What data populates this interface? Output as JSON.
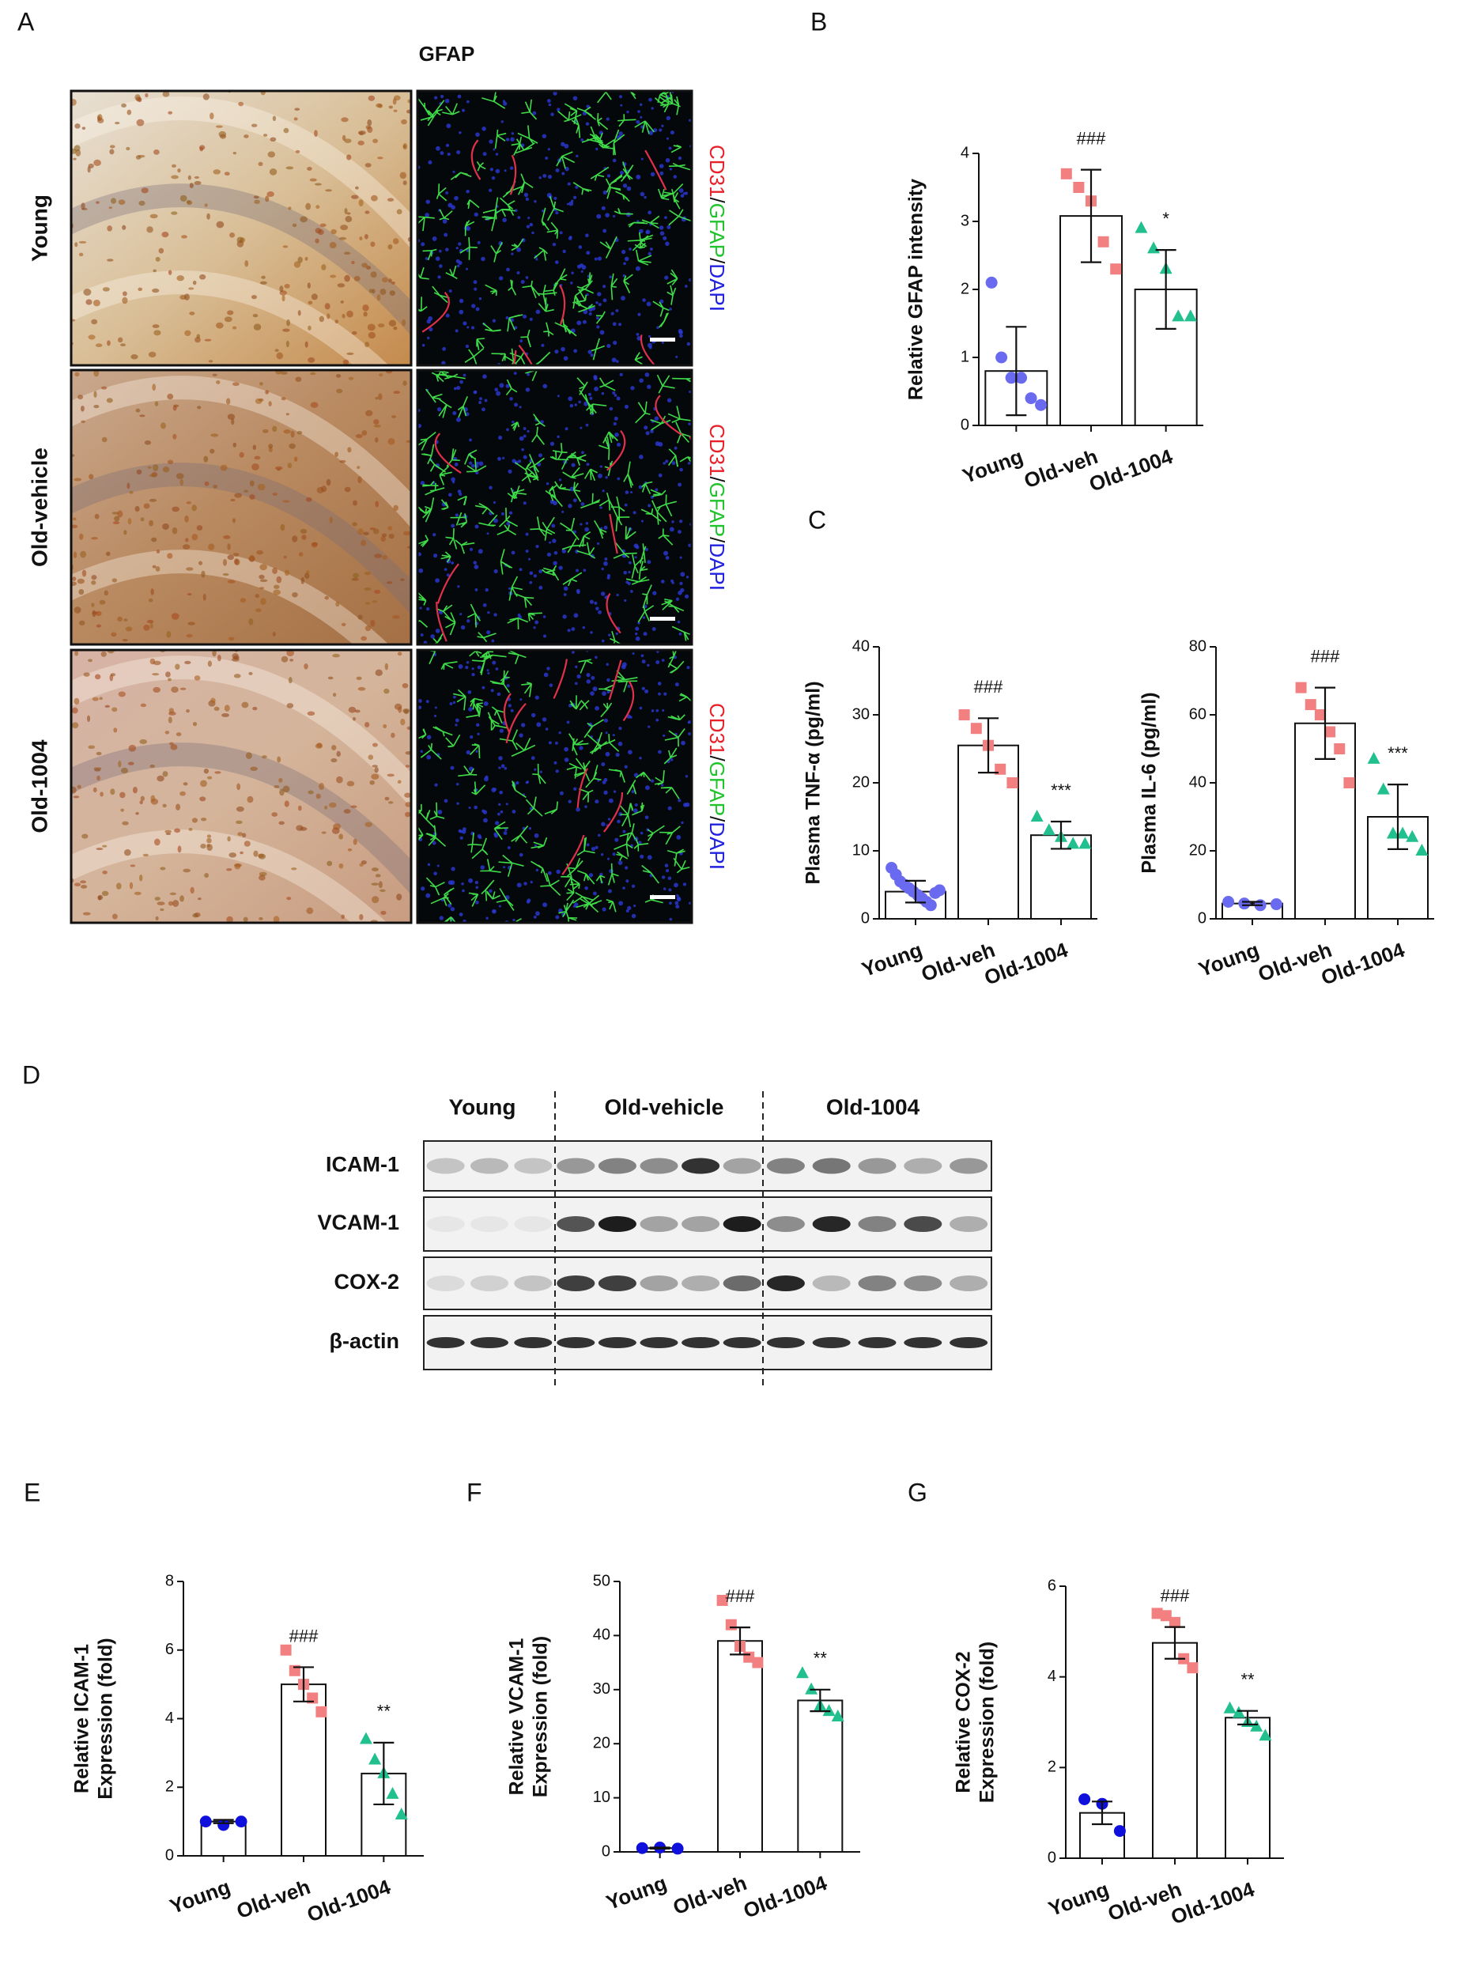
{
  "figure": {
    "panel_a": {
      "letter": "A",
      "title": "GFAP",
      "rows": [
        "Young",
        "Old-vehicle",
        "Old-1004"
      ],
      "stain_label": [
        "CD31",
        "/",
        "GFAP",
        "/",
        "DAPI"
      ]
    },
    "panel_d": {
      "letter": "D",
      "groups": [
        "Young",
        "Old-vehicle",
        "Old-1004"
      ],
      "rows": [
        "ICAM-1",
        "VCAM-1",
        "COX-2",
        "β-actin"
      ]
    }
  },
  "chart_data": [
    {
      "type": "bar",
      "panel": "B",
      "ylabel": [
        "Relative GFAP intensity"
      ],
      "categories": [
        "Young",
        "Old-veh",
        "Old-1004"
      ],
      "values": [
        0.8,
        3.08,
        2.0
      ],
      "errors": [
        0.65,
        0.68,
        0.58
      ],
      "points": [
        [
          2.1,
          1.0,
          0.7,
          0.7,
          0.4,
          0.3
        ],
        [
          3.7,
          3.5,
          3.3,
          2.7,
          2.3
        ],
        [
          2.9,
          2.6,
          2.3,
          1.6,
          1.6
        ]
      ],
      "significance": [
        null,
        "###",
        "*"
      ],
      "colors": [
        "#6a6af0",
        "#f28080",
        "#22c08e"
      ],
      "ylim": [
        0,
        4
      ],
      "yticks": [
        0,
        1,
        2,
        3,
        4
      ]
    },
    {
      "type": "bar",
      "panel": "C",
      "ylabel": [
        "Plasma TNF-α (pg/ml)"
      ],
      "categories": [
        "Young",
        "Old-veh",
        "Old-1004"
      ],
      "values": [
        4,
        25.5,
        12.3
      ],
      "errors": [
        1.6,
        4,
        2
      ],
      "points": [
        [
          7.5,
          6.5,
          5.5,
          5,
          4.5,
          4,
          3.5,
          3,
          2.5,
          2,
          3.8,
          4.2
        ],
        [
          30,
          28,
          25.5,
          22,
          20
        ],
        [
          15,
          13,
          12,
          11,
          11
        ]
      ],
      "significance": [
        null,
        "###",
        "***"
      ],
      "colors": [
        "#6a6af0",
        "#f28080",
        "#22c08e"
      ],
      "ylim": [
        0,
        40
      ],
      "yticks": [
        0,
        10,
        20,
        30,
        40
      ]
    },
    {
      "type": "bar",
      "ylabel": [
        "Plasma IL-6 (pg/ml)"
      ],
      "categories": [
        "Young",
        "Old-veh",
        "Old-1004"
      ],
      "values": [
        4.5,
        57.5,
        30
      ],
      "errors": [
        0.5,
        10.5,
        9.5
      ],
      "points": [
        [
          5,
          4.5,
          4,
          4.3
        ],
        [
          68,
          63,
          60,
          55,
          50,
          40
        ],
        [
          47,
          38,
          25,
          25,
          24,
          20
        ]
      ],
      "significance": [
        null,
        "###",
        "***"
      ],
      "colors": [
        "#6a6af0",
        "#f28080",
        "#22c08e"
      ],
      "ylim": [
        0,
        80
      ],
      "yticks": [
        0,
        20,
        40,
        60,
        80
      ]
    },
    {
      "type": "bar",
      "panel": "E",
      "ylabel": [
        "Relative ICAM-1",
        "Expression (fold)"
      ],
      "categories": [
        "Young",
        "Old-veh",
        "Old-1004"
      ],
      "values": [
        1.0,
        5.0,
        2.4
      ],
      "errors": [
        0.05,
        0.5,
        0.9
      ],
      "points": [
        [
          1.0,
          0.9,
          1.0
        ],
        [
          6.0,
          5.4,
          5.0,
          4.6,
          4.2
        ],
        [
          3.4,
          2.8,
          2.4,
          1.8,
          1.2
        ]
      ],
      "significance": [
        null,
        "###",
        "**"
      ],
      "colors": [
        "#1010dd",
        "#f28080",
        "#22c08e"
      ],
      "ylim": [
        0,
        8
      ],
      "yticks": [
        0,
        2,
        4,
        6,
        8
      ]
    },
    {
      "type": "bar",
      "panel": "F",
      "ylabel": [
        "Relative VCAM-1",
        "Expression (fold)"
      ],
      "categories": [
        "Young",
        "Old-veh",
        "Old-1004"
      ],
      "values": [
        0.7,
        39,
        28
      ],
      "errors": [
        0.1,
        2.5,
        2
      ],
      "points": [
        [
          0.7,
          0.8,
          0.6
        ],
        [
          46.5,
          42,
          38,
          36,
          35
        ],
        [
          33,
          30,
          27,
          26,
          25
        ]
      ],
      "significance": [
        null,
        "###",
        "**"
      ],
      "colors": [
        "#1010dd",
        "#f28080",
        "#22c08e"
      ],
      "ylim": [
        0,
        50
      ],
      "yticks": [
        0,
        10,
        20,
        30,
        40,
        50
      ]
    },
    {
      "type": "bar",
      "panel": "G",
      "ylabel": [
        "Relative COX-2",
        "Expression (fold)"
      ],
      "categories": [
        "Young",
        "Old-veh",
        "Old-1004"
      ],
      "values": [
        1.0,
        4.75,
        3.1
      ],
      "errors": [
        0.25,
        0.35,
        0.15
      ],
      "points": [
        [
          1.3,
          1.2,
          0.6
        ],
        [
          5.4,
          5.35,
          5.2,
          4.4,
          4.2
        ],
        [
          3.3,
          3.2,
          3.0,
          2.9,
          2.7
        ]
      ],
      "significance": [
        null,
        "###",
        "**"
      ],
      "colors": [
        "#1010dd",
        "#f28080",
        "#22c08e"
      ],
      "ylim": [
        0,
        6
      ],
      "yticks": [
        0,
        2,
        4,
        6
      ]
    }
  ]
}
